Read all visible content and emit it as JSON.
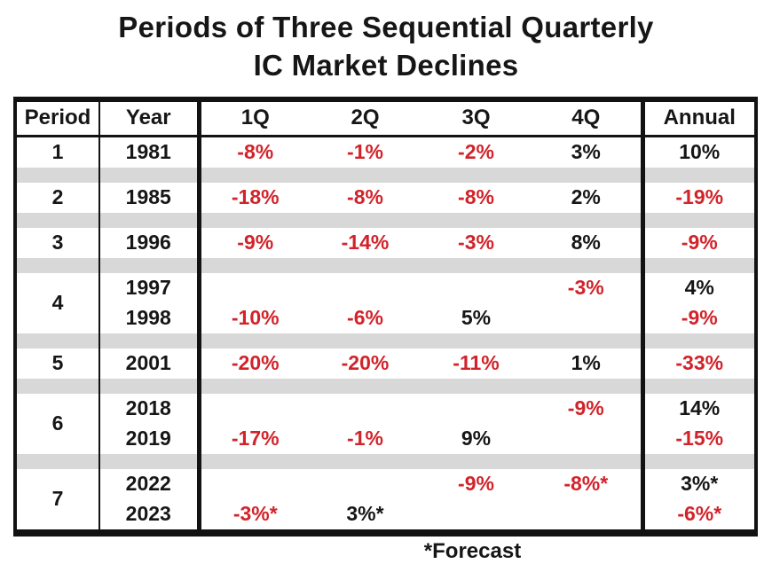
{
  "title": {
    "line1": "Periods of Three Sequential Quarterly",
    "line2": "IC Market Declines"
  },
  "table": {
    "columns": [
      "Period",
      "Year",
      "1Q",
      "2Q",
      "3Q",
      "4Q",
      "Annual"
    ],
    "groups": [
      {
        "period": "1",
        "rows": [
          {
            "year": "1981",
            "q": [
              {
                "t": "-8%",
                "c": "neg"
              },
              {
                "t": "-1%",
                "c": "neg"
              },
              {
                "t": "-2%",
                "c": "neg"
              },
              {
                "t": "3%",
                "c": "pos"
              }
            ],
            "a": {
              "t": "10%",
              "c": "pos"
            }
          }
        ]
      },
      {
        "period": "2",
        "rows": [
          {
            "year": "1985",
            "q": [
              {
                "t": "-18%",
                "c": "neg"
              },
              {
                "t": "-8%",
                "c": "neg"
              },
              {
                "t": "-8%",
                "c": "neg"
              },
              {
                "t": "2%",
                "c": "pos"
              }
            ],
            "a": {
              "t": "-19%",
              "c": "neg"
            }
          }
        ]
      },
      {
        "period": "3",
        "rows": [
          {
            "year": "1996",
            "q": [
              {
                "t": "-9%",
                "c": "neg"
              },
              {
                "t": "-14%",
                "c": "neg"
              },
              {
                "t": "-3%",
                "c": "neg"
              },
              {
                "t": "8%",
                "c": "pos"
              }
            ],
            "a": {
              "t": "-9%",
              "c": "neg"
            }
          }
        ]
      },
      {
        "period": "4",
        "rows": [
          {
            "year": "1997",
            "q": [
              null,
              null,
              null,
              {
                "t": "-3%",
                "c": "neg"
              }
            ],
            "a": {
              "t": "4%",
              "c": "pos"
            }
          },
          {
            "year": "1998",
            "q": [
              {
                "t": "-10%",
                "c": "neg"
              },
              {
                "t": "-6%",
                "c": "neg"
              },
              {
                "t": "5%",
                "c": "pos"
              },
              null
            ],
            "a": {
              "t": "-9%",
              "c": "neg"
            }
          }
        ]
      },
      {
        "period": "5",
        "rows": [
          {
            "year": "2001",
            "q": [
              {
                "t": "-20%",
                "c": "neg"
              },
              {
                "t": "-20%",
                "c": "neg"
              },
              {
                "t": "-11%",
                "c": "neg"
              },
              {
                "t": "1%",
                "c": "pos"
              }
            ],
            "a": {
              "t": "-33%",
              "c": "neg"
            }
          }
        ]
      },
      {
        "period": "6",
        "rows": [
          {
            "year": "2018",
            "q": [
              null,
              null,
              null,
              {
                "t": "-9%",
                "c": "neg"
              }
            ],
            "a": {
              "t": "14%",
              "c": "pos"
            }
          },
          {
            "year": "2019",
            "q": [
              {
                "t": "-17%",
                "c": "neg"
              },
              {
                "t": "-1%",
                "c": "neg"
              },
              {
                "t": "9%",
                "c": "pos"
              },
              null
            ],
            "a": {
              "t": "-15%",
              "c": "neg"
            }
          }
        ]
      },
      {
        "period": "7",
        "rows": [
          {
            "year": "2022",
            "q": [
              null,
              null,
              {
                "t": "-9%",
                "c": "neg"
              },
              {
                "t": "-8%*",
                "c": "neg"
              }
            ],
            "a": {
              "t": "3%*",
              "c": "pos"
            }
          },
          {
            "year": "2023",
            "q": [
              {
                "t": "-3%*",
                "c": "neg"
              },
              {
                "t": "3%*",
                "c": "pos"
              },
              null,
              null
            ],
            "a": {
              "t": "-6%*",
              "c": "neg"
            }
          }
        ]
      }
    ]
  },
  "footnote": "*Forecast",
  "colors": {
    "negative": "#d2232a",
    "positive": "#161616",
    "separator_band": "#d8d8d8",
    "rule": "#121212"
  },
  "chart_data": {
    "type": "table",
    "title": "Periods of Three Sequential Quarterly IC Market Declines",
    "columns": [
      "Period",
      "Year",
      "1Q",
      "2Q",
      "3Q",
      "4Q",
      "Annual"
    ],
    "units": "percent quarter-over-quarter growth",
    "rows": [
      {
        "period": 1,
        "year": 1981,
        "q1": -8,
        "q2": -1,
        "q3": -2,
        "q4": 3,
        "annual": 10
      },
      {
        "period": 2,
        "year": 1985,
        "q1": -18,
        "q2": -8,
        "q3": -8,
        "q4": 2,
        "annual": -19
      },
      {
        "period": 3,
        "year": 1996,
        "q1": -9,
        "q2": -14,
        "q3": -3,
        "q4": 8,
        "annual": -9
      },
      {
        "period": 4,
        "year": 1997,
        "q1": null,
        "q2": null,
        "q3": null,
        "q4": -3,
        "annual": 4
      },
      {
        "period": 4,
        "year": 1998,
        "q1": -10,
        "q2": -6,
        "q3": 5,
        "q4": null,
        "annual": -9
      },
      {
        "period": 5,
        "year": 2001,
        "q1": -20,
        "q2": -20,
        "q3": -11,
        "q4": 1,
        "annual": -33
      },
      {
        "period": 6,
        "year": 2018,
        "q1": null,
        "q2": null,
        "q3": null,
        "q4": -9,
        "annual": 14
      },
      {
        "period": 6,
        "year": 2019,
        "q1": -17,
        "q2": -1,
        "q3": 9,
        "q4": null,
        "annual": -15
      },
      {
        "period": 7,
        "year": 2022,
        "q1": null,
        "q2": null,
        "q3": -9,
        "q4": -8,
        "annual": 3
      },
      {
        "period": 7,
        "year": 2023,
        "q1": -3,
        "q2": 3,
        "q3": null,
        "q4": null,
        "annual": -6
      }
    ],
    "forecast_note": "*Forecast",
    "forecast_cells": [
      "2022 4Q",
      "2022 Annual",
      "2023 1Q",
      "2023 2Q",
      "2023 Annual"
    ],
    "color_coding": {
      "negative_values": "#d2232a",
      "positive_values": "#161616"
    }
  }
}
